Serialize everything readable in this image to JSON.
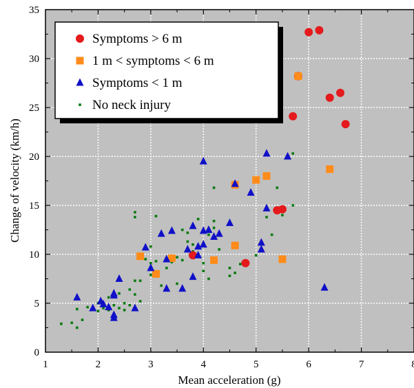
{
  "colors": {
    "plot_background": "#c0c0c0",
    "gridline": "#ffffff",
    "symptoms_gt6": "#e41a1c",
    "symptoms_1to6": "#ff8c1a",
    "symptoms_lt1": "#1010c8",
    "no_injury": "#0a7a10"
  },
  "chart_data": {
    "type": "scatter",
    "title": "",
    "xlabel": "Mean acceleration (g)",
    "ylabel": "Change of velocity (km/h)",
    "xlim": [
      1,
      8
    ],
    "ylim": [
      0,
      35
    ],
    "xticks": [
      "1",
      "2",
      "3",
      "4",
      "5",
      "6",
      "7",
      "8"
    ],
    "yticks": [
      "0",
      "5",
      "10",
      "15",
      "20",
      "25",
      "30",
      "35"
    ],
    "grid": true,
    "legend_position": "top-left",
    "series": [
      {
        "name": "Symptoms > 6 m",
        "marker": "circle",
        "color": "#e41a1c",
        "points": [
          [
            3.8,
            9.9
          ],
          [
            4.8,
            9.1
          ],
          [
            5.4,
            14.5
          ],
          [
            5.5,
            14.6
          ],
          [
            5.7,
            24.1
          ],
          [
            5.8,
            28.2
          ],
          [
            6.0,
            32.7
          ],
          [
            6.2,
            32.9
          ],
          [
            6.4,
            26.0
          ],
          [
            6.6,
            26.5
          ],
          [
            6.7,
            23.3
          ]
        ]
      },
      {
        "name": "1 m < symptoms < 6 m",
        "marker": "square",
        "color": "#ff8c1a",
        "points": [
          [
            2.8,
            9.8
          ],
          [
            3.1,
            8.0
          ],
          [
            3.4,
            9.6
          ],
          [
            4.2,
            9.4
          ],
          [
            4.6,
            17.1
          ],
          [
            4.6,
            10.9
          ],
          [
            5.0,
            17.6
          ],
          [
            5.2,
            18.0
          ],
          [
            5.5,
            9.5
          ],
          [
            5.8,
            28.2
          ],
          [
            6.4,
            18.7
          ]
        ]
      },
      {
        "name": "Symptoms < 1 m",
        "marker": "triangle",
        "color": "#1010c8",
        "points": [
          [
            1.6,
            5.6
          ],
          [
            1.9,
            4.5
          ],
          [
            2.05,
            5.2
          ],
          [
            2.1,
            4.9
          ],
          [
            2.2,
            4.6
          ],
          [
            2.3,
            6.0
          ],
          [
            2.3,
            5.8
          ],
          [
            2.3,
            3.8
          ],
          [
            2.3,
            3.5
          ],
          [
            2.4,
            7.5
          ],
          [
            2.7,
            4.5
          ],
          [
            2.9,
            10.7
          ],
          [
            3.0,
            8.6
          ],
          [
            3.2,
            12.1
          ],
          [
            3.3,
            9.5
          ],
          [
            3.3,
            6.5
          ],
          [
            3.4,
            12.4
          ],
          [
            3.6,
            6.5
          ],
          [
            3.7,
            10.5
          ],
          [
            3.8,
            12.9
          ],
          [
            3.8,
            7.7
          ],
          [
            3.9,
            10.8
          ],
          [
            3.9,
            9.9
          ],
          [
            4.0,
            11.0
          ],
          [
            4.0,
            12.4
          ],
          [
            4.0,
            19.5
          ],
          [
            4.1,
            12.5
          ],
          [
            4.2,
            11.8
          ],
          [
            4.3,
            12.1
          ],
          [
            4.5,
            13.2
          ],
          [
            4.6,
            17.2
          ],
          [
            4.9,
            16.3
          ],
          [
            5.1,
            11.2
          ],
          [
            5.1,
            10.5
          ],
          [
            5.2,
            14.7
          ],
          [
            5.2,
            20.3
          ],
          [
            5.6,
            20.0
          ],
          [
            6.3,
            6.6
          ]
        ]
      },
      {
        "name": "No neck injury",
        "marker": "small-square",
        "color": "#0a7a10",
        "points": [
          [
            1.3,
            2.9
          ],
          [
            1.5,
            3.0
          ],
          [
            1.6,
            2.5
          ],
          [
            1.6,
            4.4
          ],
          [
            1.7,
            3.3
          ],
          [
            1.8,
            4.6
          ],
          [
            1.9,
            4.4
          ],
          [
            2.0,
            4.2
          ],
          [
            2.0,
            5.0
          ],
          [
            2.1,
            4.5
          ],
          [
            2.2,
            5.6
          ],
          [
            2.2,
            4.3
          ],
          [
            2.3,
            4.8
          ],
          [
            2.4,
            6.0
          ],
          [
            2.4,
            4.5
          ],
          [
            2.5,
            5.0
          ],
          [
            2.5,
            4.3
          ],
          [
            2.6,
            6.4
          ],
          [
            2.6,
            4.8
          ],
          [
            2.7,
            5.9
          ],
          [
            2.7,
            7.3
          ],
          [
            2.7,
            14.3
          ],
          [
            2.7,
            13.8
          ],
          [
            2.8,
            7.3
          ],
          [
            2.8,
            5.2
          ],
          [
            2.9,
            9.5
          ],
          [
            3.0,
            7.9
          ],
          [
            3.0,
            10.8
          ],
          [
            3.0,
            9.1
          ],
          [
            3.1,
            9.3
          ],
          [
            3.1,
            13.9
          ],
          [
            3.2,
            12.2
          ],
          [
            3.2,
            6.8
          ],
          [
            3.3,
            8.6
          ],
          [
            3.4,
            9.2
          ],
          [
            3.5,
            9.7
          ],
          [
            3.5,
            7.0
          ],
          [
            3.6,
            9.4
          ],
          [
            3.6,
            12.5
          ],
          [
            3.7,
            11.3
          ],
          [
            3.7,
            12.2
          ],
          [
            3.8,
            10.3
          ],
          [
            3.8,
            11.0
          ],
          [
            3.9,
            13.6
          ],
          [
            3.9,
            10.9
          ],
          [
            4.0,
            9.1
          ],
          [
            4.0,
            8.3
          ],
          [
            4.1,
            7.5
          ],
          [
            4.1,
            12.0
          ],
          [
            4.2,
            12.7
          ],
          [
            4.2,
            13.4
          ],
          [
            4.2,
            16.8
          ],
          [
            4.2,
            9.2
          ],
          [
            4.3,
            10.5
          ],
          [
            4.5,
            8.6
          ],
          [
            4.5,
            7.8
          ],
          [
            4.6,
            8.1
          ],
          [
            4.7,
            9.0
          ],
          [
            5.0,
            9.9
          ],
          [
            5.1,
            10.5
          ],
          [
            5.2,
            13.8
          ],
          [
            5.3,
            12.0
          ],
          [
            5.4,
            16.8
          ],
          [
            5.5,
            14.0
          ],
          [
            5.7,
            15.0
          ],
          [
            5.7,
            20.3
          ]
        ]
      }
    ]
  }
}
